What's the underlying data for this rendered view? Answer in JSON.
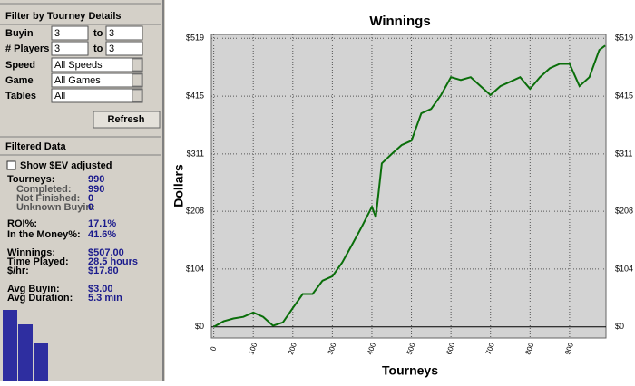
{
  "filter_panel": {
    "title": "Filter by Tourney Details",
    "buyin": {
      "label": "Buyin",
      "from": 3,
      "to_label": "to",
      "to": 3
    },
    "players": {
      "label": "# Players",
      "from": 3,
      "to_label": "to",
      "to": 3
    },
    "speed": {
      "label": "Speed",
      "value": "All Speeds"
    },
    "game": {
      "label": "Game",
      "value": "All Games"
    },
    "tables": {
      "label": "Tables",
      "value": "All"
    },
    "refresh": "Refresh"
  },
  "filtered_data": {
    "title": "Filtered Data",
    "ev_checkbox": "Show $EV adjusted",
    "stats": [
      [
        "Tourneys:",
        990
      ],
      [
        "Completed:",
        990
      ],
      [
        "Not Finished:",
        0
      ],
      [
        "Unknown Buyin:",
        0
      ],
      [
        "ROI%:",
        "17.1%"
      ],
      [
        "In the Money%:",
        "41.6%"
      ],
      [
        "Winnings:",
        "$507.00"
      ],
      [
        "Time Played:",
        "28.5 hours"
      ],
      [
        "$/hr:",
        "$17.80"
      ],
      [
        "Avg Buyin:",
        "$3.00"
      ],
      [
        "Avg Duration:",
        "5.3 min"
      ]
    ]
  },
  "chart_data": {
    "type": "line",
    "title": "Winnings",
    "x_label": "Tourneys",
    "y_label": "Dollars",
    "x": [
      0,
      25,
      50,
      75,
      100,
      125,
      150,
      175,
      200,
      225,
      250,
      275,
      300,
      325,
      350,
      375,
      400,
      410,
      425,
      450,
      475,
      500,
      525,
      550,
      575,
      600,
      625,
      650,
      675,
      700,
      725,
      750,
      775,
      800,
      825,
      850,
      875,
      900,
      925,
      950,
      975,
      990
    ],
    "values": [
      0,
      10,
      15,
      18,
      26,
      18,
      2,
      8,
      34,
      59,
      59,
      83,
      91,
      116,
      148,
      181,
      216,
      197,
      294,
      311,
      327,
      335,
      384,
      392,
      417,
      449,
      444,
      449,
      433,
      417,
      433,
      441,
      449,
      428,
      449,
      465,
      473,
      473,
      433,
      449,
      498,
      506
    ],
    "color": "#0a6e0a",
    "xlim": [
      -6,
      992
    ],
    "xticks": [
      0,
      100,
      200,
      300,
      400,
      500,
      600,
      700,
      800,
      900
    ],
    "ylim": [
      -20,
      526
    ],
    "yticks": [
      {
        "value": 0,
        "label": "$0"
      },
      {
        "value": 104,
        "label": "$104"
      },
      {
        "value": 208,
        "label": "$208"
      },
      {
        "value": 311,
        "label": "$311"
      },
      {
        "value": 415,
        "label": "$415"
      },
      {
        "value": 519,
        "label": "$519"
      }
    ],
    "grid": true
  }
}
